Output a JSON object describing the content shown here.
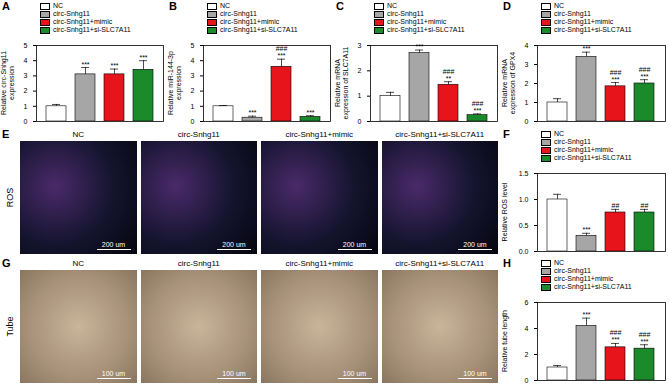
{
  "chart_data": [
    {
      "type": "bar",
      "panel_label": "A",
      "y_label": "Relative circ-Snhg11 expression",
      "categories": [
        "NC",
        "circ-Snhg11",
        "circ-Snhg11+mimic",
        "circ-Snhg11+si-SLC7A11"
      ],
      "colors": [
        "#ffffff",
        "#a6a6a6",
        "#e8141b",
        "#1b8a2a"
      ],
      "values": [
        1.0,
        3.1,
        3.1,
        3.4
      ],
      "errors": [
        0.12,
        0.45,
        0.35,
        0.6
      ],
      "annotations": [
        [],
        [
          "***"
        ],
        [
          "***"
        ],
        [
          "***"
        ]
      ],
      "ylim": [
        0,
        5
      ],
      "yticks": [
        0,
        1,
        2,
        3,
        4,
        5
      ],
      "tick_labels": "y",
      "legend": "top-left"
    },
    {
      "type": "bar",
      "panel_label": "B",
      "y_label": "Relative miR-144-3p expression",
      "categories": [
        "NC",
        "circ-Snhg11",
        "circ-Snhg11+mimic",
        "circ-Snhg11+si-SLC7A11"
      ],
      "colors": [
        "#ffffff",
        "#a6a6a6",
        "#e8141b",
        "#1b8a2a"
      ],
      "values": [
        1.0,
        0.25,
        3.6,
        0.3
      ],
      "errors": [
        0.05,
        0.1,
        0.5,
        0.08
      ],
      "annotations": [
        [],
        [
          "***"
        ],
        [
          "###",
          "***"
        ],
        [
          "***"
        ]
      ],
      "ylim": [
        0,
        5
      ],
      "yticks": [
        0,
        1,
        2,
        3,
        4,
        5
      ],
      "tick_labels": "y",
      "legend": "top-left"
    },
    {
      "type": "bar",
      "panel_label": "C",
      "y_label": "Relative mRNA expression of SLC7A11",
      "categories": [
        "NC",
        "circ-Snhg11",
        "circ-Snhg11+mimic",
        "circ-Snhg11+si-SLC7A11"
      ],
      "colors": [
        "#ffffff",
        "#a6a6a6",
        "#e8141b",
        "#1b8a2a"
      ],
      "values": [
        1.0,
        2.7,
        1.45,
        0.25
      ],
      "errors": [
        0.15,
        0.12,
        0.12,
        0.05
      ],
      "annotations": [
        [],
        [
          "***"
        ],
        [
          "###",
          "**"
        ],
        [
          "###",
          "***"
        ]
      ],
      "ylim": [
        0,
        3
      ],
      "yticks": [
        0,
        1,
        2,
        3
      ],
      "tick_labels": "y",
      "legend": "top-left"
    },
    {
      "type": "bar",
      "panel_label": "D",
      "y_label": "Relative mRNA expression of GPX4",
      "categories": [
        "NC",
        "circ-Snhg11",
        "circ-Snhg11+mimic",
        "circ-Snhg11+si-SLC7A11"
      ],
      "colors": [
        "#ffffff",
        "#a6a6a6",
        "#e8141b",
        "#1b8a2a"
      ],
      "values": [
        1.0,
        3.4,
        1.85,
        2.0
      ],
      "errors": [
        0.2,
        0.25,
        0.2,
        0.2
      ],
      "annotations": [
        [],
        [
          "***"
        ],
        [
          "###",
          "***"
        ],
        [
          "###",
          "***"
        ]
      ],
      "ylim": [
        0,
        4
      ],
      "yticks": [
        0,
        1,
        2,
        3,
        4
      ],
      "tick_labels": "y",
      "legend": "top-left"
    },
    {
      "type": "bar",
      "panel_label": "F",
      "y_label": "Relative ROS level",
      "categories": [
        "NC",
        "circ-Snhg11",
        "circ-Snhg11+mimic",
        "circ-Snhg11+si-SLC7A11"
      ],
      "colors": [
        "#ffffff",
        "#a6a6a6",
        "#e8141b",
        "#1b8a2a"
      ],
      "values": [
        1.0,
        0.3,
        0.75,
        0.75
      ],
      "errors": [
        0.1,
        0.05,
        0.06,
        0.06
      ],
      "annotations": [
        [],
        [
          "***"
        ],
        [
          "##"
        ],
        [
          "##"
        ]
      ],
      "ylim": [
        0,
        1.5
      ],
      "yticks": [
        {
          "value": 0,
          "label": "0.0"
        },
        {
          "value": 0.5,
          "label": "0.5"
        },
        {
          "value": 1,
          "label": "1.0"
        },
        {
          "value": 1.5,
          "label": "1.5"
        }
      ],
      "tick_labels": "y",
      "legend": "top-left"
    },
    {
      "type": "bar",
      "panel_label": "H",
      "y_label": "Relative tube length",
      "categories": [
        "NC",
        "circ-Snhg11",
        "circ-Snhg11+mimic",
        "circ-Snhg11+si-SLC7A11"
      ],
      "colors": [
        "#ffffff",
        "#a6a6a6",
        "#e8141b",
        "#1b8a2a"
      ],
      "values": [
        1.0,
        4.2,
        2.55,
        2.45
      ],
      "errors": [
        0.15,
        0.6,
        0.3,
        0.3
      ],
      "annotations": [
        [],
        [
          "***"
        ],
        [
          "###",
          "***"
        ],
        [
          "###",
          "***"
        ]
      ],
      "ylim": [
        0,
        6
      ],
      "yticks": [
        0,
        2,
        4,
        6
      ],
      "tick_labels": "y",
      "legend": "top-left"
    }
  ],
  "image_panels": [
    {
      "panel_label": "E",
      "row_label": "ROS",
      "captions": [
        "NC",
        "circ-Snhg11",
        "circ-Snhg11+mimic",
        "circ-Snhg11+si-SLC7A11"
      ],
      "scale_bar": "200 um",
      "kind": "fluorescence"
    },
    {
      "panel_label": "G",
      "row_label": "Tube",
      "captions": [
        "NC",
        "circ-Snhg11",
        "circ-Snhg11+mimic",
        "circ-Snhg11+si-SLC7A11"
      ],
      "scale_bar": "100 um",
      "kind": "brightfield"
    }
  ]
}
